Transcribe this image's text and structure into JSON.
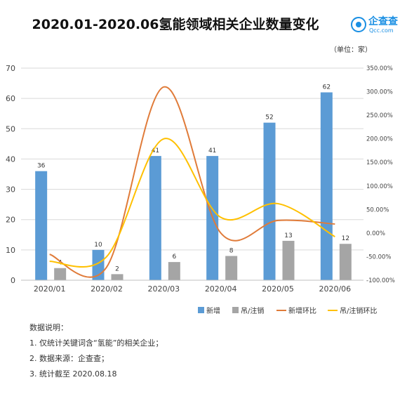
{
  "title": "2020.01-2020.06氢能领域相关企业数量变化",
  "logo": {
    "name": "企查查",
    "domain": "Qcc.com"
  },
  "unit_label": "（单位：家）",
  "legend": [
    "新增",
    "吊/注销",
    "新增环比",
    "吊/注销环比"
  ],
  "notes": [
    "数据说明：",
    "1. 仅统计关键词含“氢能”的相关企业；",
    "2. 数据来源：企查查；",
    "3. 统计截至 2020.08.18"
  ],
  "colors": {
    "new": "#5b9bd5",
    "cancel": "#a5a5a5",
    "new_mom": "#e07b39",
    "cancel_mom": "#ffc000"
  },
  "chart_data": {
    "type": "bar",
    "categories": [
      "2020/01",
      "2020/02",
      "2020/03",
      "2020/04",
      "2020/05",
      "2020/06"
    ],
    "series": [
      {
        "name": "新增",
        "type": "bar",
        "axis": "left",
        "values": [
          36,
          10,
          41,
          41,
          52,
          62
        ]
      },
      {
        "name": "吊/注销",
        "type": "bar",
        "axis": "left",
        "values": [
          4,
          2,
          6,
          8,
          13,
          12
        ]
      },
      {
        "name": "新增环比",
        "type": "line",
        "axis": "right",
        "values": [
          -45,
          -72.2,
          310,
          0,
          26.8,
          19.2
        ]
      },
      {
        "name": "吊/注销环比",
        "type": "line",
        "axis": "right",
        "values": [
          -60,
          -50,
          200,
          33.3,
          62.5,
          -7.7
        ]
      }
    ],
    "ylim_left": [
      0,
      70
    ],
    "yticks_left": [
      "0",
      "10",
      "20",
      "30",
      "40",
      "50",
      "60",
      "70"
    ],
    "ylim_right": [
      -100,
      350
    ],
    "yticks_right": [
      "-100.00%",
      "-50.00%",
      "0.00%",
      "50.00%",
      "100.00%",
      "150.00%",
      "200.00%",
      "250.00%",
      "300.00%",
      "350.00%"
    ],
    "grid": true,
    "legend_position": "bottom-right"
  }
}
